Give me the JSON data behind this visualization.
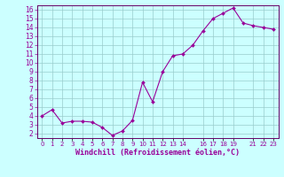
{
  "x": [
    0,
    1,
    2,
    3,
    4,
    5,
    6,
    7,
    8,
    9,
    10,
    11,
    12,
    13,
    14,
    15,
    16,
    17,
    18,
    19,
    20,
    21,
    22,
    23
  ],
  "y": [
    4.0,
    4.7,
    3.2,
    3.4,
    3.4,
    3.3,
    2.7,
    1.8,
    2.3,
    3.5,
    7.8,
    5.6,
    9.0,
    10.8,
    11.0,
    12.0,
    13.6,
    15.0,
    15.6,
    16.2,
    14.5,
    14.2,
    14.0,
    13.8
  ],
  "line_color": "#990099",
  "marker": "D",
  "marker_size": 2.0,
  "bg_color": "#ccffff",
  "grid_color": "#99cccc",
  "xlabel": "Windchill (Refroidissement éolien,°C)",
  "xlabel_color": "#990099",
  "tick_color": "#990099",
  "spine_color": "#660066",
  "xlim": [
    -0.5,
    23.5
  ],
  "ylim": [
    1.5,
    16.5
  ],
  "yticks": [
    2,
    3,
    4,
    5,
    6,
    7,
    8,
    9,
    10,
    11,
    12,
    13,
    14,
    15,
    16
  ],
  "xtick_positions": [
    0,
    1,
    2,
    3,
    4,
    5,
    6,
    7,
    8,
    9,
    10,
    11,
    12,
    13,
    14,
    16,
    17,
    18,
    19,
    21,
    22,
    23
  ],
  "xtick_labels": [
    "0",
    "1",
    "2",
    "3",
    "4",
    "5",
    "6",
    "7",
    "8",
    "9",
    "10",
    "11",
    "12",
    "13",
    "14",
    "16",
    "17",
    "18",
    "19",
    "21",
    "22",
    "23"
  ],
  "ytick_fontsize": 5.5,
  "xtick_fontsize": 5.0,
  "xlabel_fontsize": 6.0,
  "linewidth": 0.8
}
